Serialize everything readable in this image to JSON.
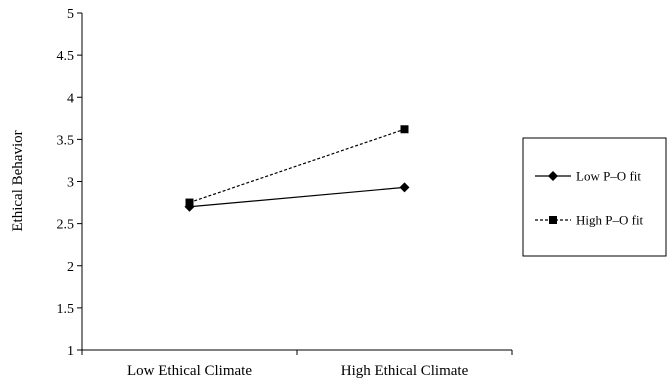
{
  "chart_data": {
    "type": "line",
    "title": "",
    "xlabel": "",
    "ylabel": "Ethical Behavior",
    "categories": [
      "Low Ethical Climate",
      "High Ethical Climate"
    ],
    "ylim": [
      1,
      5
    ],
    "yticks": [
      "1",
      "1.5",
      "2",
      "2.5",
      "3",
      "3.5",
      "4",
      "4.5",
      "5"
    ],
    "grid": false,
    "legend_position": "right",
    "series": [
      {
        "name": "Low P–O fit",
        "values": [
          2.7,
          2.93
        ],
        "line_style": "solid",
        "marker": "diamond",
        "color": "#000000"
      },
      {
        "name": "High P–O fit",
        "values": [
          2.75,
          3.62
        ],
        "line_style": "dashed",
        "marker": "square",
        "color": "#000000"
      }
    ]
  }
}
